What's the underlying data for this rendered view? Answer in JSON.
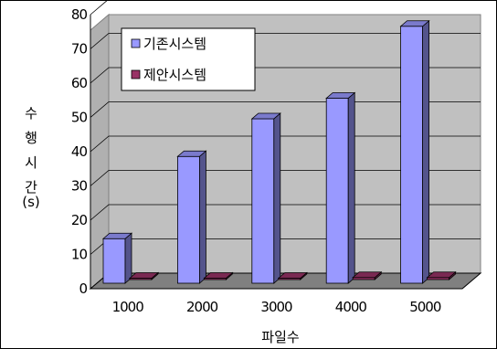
{
  "chart_data": {
    "type": "bar",
    "title": "",
    "xlabel": "파일수",
    "ylabel_lines": [
      "수",
      "행",
      "시",
      "간",
      "(s)"
    ],
    "categories": [
      "1000",
      "2000",
      "3000",
      "4000",
      "5000"
    ],
    "ylim": [
      0,
      80
    ],
    "yticks": [
      "0",
      "10",
      "20",
      "30",
      "40",
      "50",
      "60",
      "70",
      "80"
    ],
    "grid": true,
    "legend_position": "top-left",
    "series": [
      {
        "name": "기존시스템",
        "values": [
          13,
          37,
          48,
          54,
          75
        ],
        "color": "#9999ff"
      },
      {
        "name": "제안시스템",
        "values": [
          0.4,
          0.4,
          0.4,
          0.6,
          0.6
        ],
        "color": "#993366"
      }
    ]
  }
}
